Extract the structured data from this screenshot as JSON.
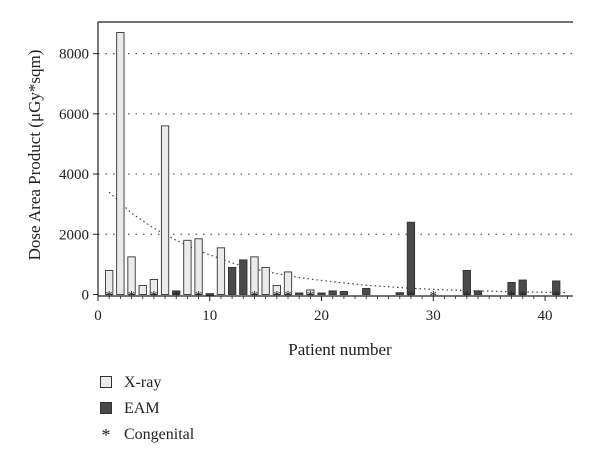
{
  "chart_data": {
    "type": "bar",
    "xlabel": "Patient number",
    "ylabel": "Dose Area Product (μGy*sqm)",
    "xlim": [
      0,
      42.5
    ],
    "ylim": [
      -50,
      9050
    ],
    "x_ticks": [
      0,
      10,
      20,
      30,
      40
    ],
    "y_ticks": [
      0,
      2000,
      4000,
      6000,
      8000
    ],
    "grid": "horizontal dotted",
    "legend_position": "below",
    "series": [
      {
        "name": "X-ray",
        "color": "#ebebeb",
        "points": [
          {
            "x": 1,
            "y": 800
          },
          {
            "x": 2,
            "y": 8700
          },
          {
            "x": 3,
            "y": 1250
          },
          {
            "x": 4,
            "y": 300
          },
          {
            "x": 5,
            "y": 500
          },
          {
            "x": 6,
            "y": 5600
          },
          {
            "x": 8,
            "y": 1800
          },
          {
            "x": 9,
            "y": 1850
          },
          {
            "x": 11,
            "y": 1550
          },
          {
            "x": 14,
            "y": 1250
          },
          {
            "x": 15,
            "y": 900
          },
          {
            "x": 16,
            "y": 300
          },
          {
            "x": 17,
            "y": 750
          },
          {
            "x": 19,
            "y": 150
          }
        ]
      },
      {
        "name": "EAM",
        "color": "#4a4a4a",
        "points": [
          {
            "x": 7,
            "y": 120
          },
          {
            "x": 10,
            "y": 30
          },
          {
            "x": 12,
            "y": 900
          },
          {
            "x": 13,
            "y": 1150
          },
          {
            "x": 18,
            "y": 50
          },
          {
            "x": 20,
            "y": 50
          },
          {
            "x": 21,
            "y": 120
          },
          {
            "x": 22,
            "y": 100
          },
          {
            "x": 24,
            "y": 200
          },
          {
            "x": 27,
            "y": 60
          },
          {
            "x": 28,
            "y": 2400
          },
          {
            "x": 33,
            "y": 800
          },
          {
            "x": 34,
            "y": 120
          },
          {
            "x": 37,
            "y": 400
          },
          {
            "x": 38,
            "y": 480
          },
          {
            "x": 41,
            "y": 450
          }
        ]
      }
    ],
    "congenital_marker": "*",
    "congenital_patients": [
      1,
      3,
      5,
      7,
      9,
      14,
      16,
      17,
      19,
      28,
      30,
      33,
      37,
      38,
      41
    ],
    "trendline": {
      "style": "dotted",
      "type": "exponential",
      "points": [
        [
          1,
          3400
        ],
        [
          3,
          2700
        ],
        [
          5,
          2200
        ],
        [
          7,
          1800
        ],
        [
          9,
          1450
        ],
        [
          12,
          1050
        ],
        [
          15,
          760
        ],
        [
          18,
          560
        ],
        [
          21,
          420
        ],
        [
          24,
          310
        ],
        [
          27,
          230
        ],
        [
          30,
          170
        ],
        [
          33,
          130
        ],
        [
          36,
          100
        ],
        [
          39,
          80
        ],
        [
          42,
          60
        ]
      ]
    }
  },
  "legend": [
    {
      "label": "X-ray",
      "color": "#ebebeb"
    },
    {
      "label": "EAM",
      "color": "#4a4a4a"
    },
    {
      "label": "Congenital",
      "symbol": "*"
    }
  ]
}
